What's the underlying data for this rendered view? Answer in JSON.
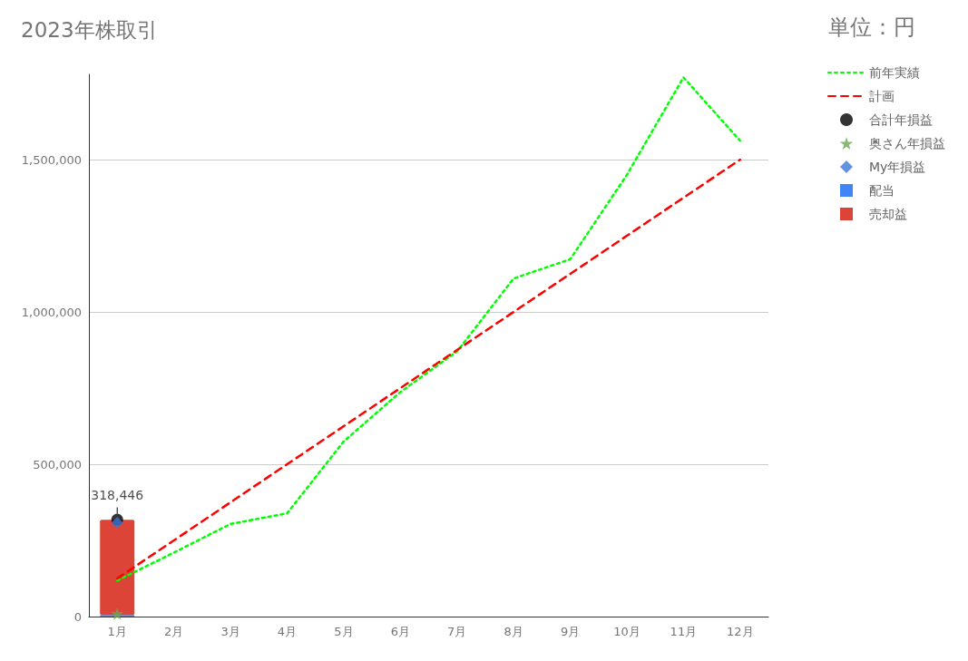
{
  "chart_data": {
    "type": "bar",
    "title": "2023年株取引",
    "annotations": [
      "単位：円"
    ],
    "categories": [
      "1月",
      "2月",
      "3月",
      "4月",
      "5月",
      "6月",
      "7月",
      "8月",
      "9月",
      "10月",
      "11月",
      "12月"
    ],
    "series": [
      {
        "name": "前年実績",
        "type": "line",
        "color": "#00ff00",
        "line_style": "dotted",
        "marker": "none",
        "values": [
          118000,
          210000,
          304000,
          339000,
          575000,
          737000,
          870000,
          1110000,
          1173000,
          1450000,
          1770000,
          1562000
        ]
      },
      {
        "name": "計画",
        "type": "line",
        "color": "#ff0000",
        "line_style": "dashed",
        "marker": "none",
        "values": [
          125000,
          250000,
          375000,
          500000,
          625000,
          750000,
          875000,
          1000000,
          1125000,
          1250000,
          1375000,
          1500000
        ]
      },
      {
        "name": "合計年損益",
        "type": "scatter",
        "color": "#000000",
        "marker": "circle",
        "values": [
          318446,
          null,
          null,
          null,
          null,
          null,
          null,
          null,
          null,
          null,
          null,
          null
        ],
        "value_labels": [
          "318,446",
          null,
          null,
          null,
          null,
          null,
          null,
          null,
          null,
          null,
          null,
          null
        ]
      },
      {
        "name": "奥さん年損益",
        "type": "scatter",
        "color": "#6aa84f",
        "marker": "star",
        "values": [
          10000,
          null,
          null,
          null,
          null,
          null,
          null,
          null,
          null,
          null,
          null,
          null
        ]
      },
      {
        "name": "My年損益",
        "type": "scatter",
        "color": "#3c78d8",
        "marker": "diamond",
        "values": [
          308000,
          null,
          null,
          null,
          null,
          null,
          null,
          null,
          null,
          null,
          null,
          null
        ]
      },
      {
        "name": "配当",
        "color": "#4285f4",
        "values": [
          5000,
          null,
          null,
          null,
          null,
          null,
          null,
          null,
          null,
          null,
          null,
          null
        ]
      },
      {
        "name": "売却益",
        "color": "#db4437",
        "values": [
          313000,
          null,
          null,
          null,
          null,
          null,
          null,
          null,
          null,
          null,
          null,
          null
        ]
      }
    ],
    "stacked": true,
    "ylim": [
      0,
      1780000
    ],
    "yticks": [
      {
        "value": 0,
        "label": "0"
      },
      {
        "value": 500000,
        "label": "500,000"
      },
      {
        "value": 1000000,
        "label": "1,000,000"
      },
      {
        "value": 1500000,
        "label": "1,500,000"
      }
    ],
    "grid": "y",
    "legend": "top right"
  }
}
